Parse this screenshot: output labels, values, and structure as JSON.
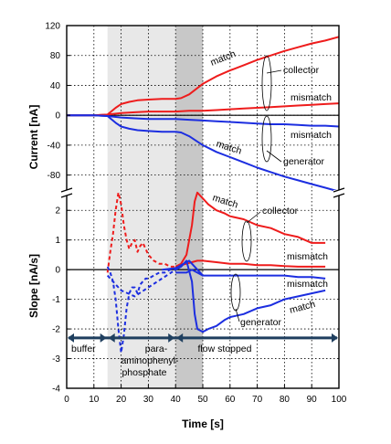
{
  "chart_data": {
    "type": "line",
    "xlabel": "Time [s]",
    "xlim": [
      0,
      100
    ],
    "x_ticks": [
      "0",
      "10",
      "20",
      "30",
      "40",
      "50",
      "60",
      "70",
      "80",
      "90",
      "100"
    ],
    "shaded_regions": [
      {
        "from": 15,
        "to": 40,
        "color": "#e8e8e8"
      },
      {
        "from": 40,
        "to": 50,
        "color": "#c8c8c8"
      }
    ],
    "panels": [
      {
        "ylabel": "Current [nA]",
        "ylim": [
          -100,
          120
        ],
        "y_ticks": [
          "120",
          "80",
          "40",
          "0",
          "-40",
          "-80"
        ],
        "series": [
          {
            "color": "#ee1c1c",
            "x": [
              0,
              10,
              15,
              18,
              20,
              23,
              26,
              30,
              35,
              40,
              42,
              45,
              50,
              55,
              60,
              65,
              70,
              75,
              80,
              85,
              90,
              95,
              100
            ],
            "y": [
              0,
              0,
              1,
              10,
              15,
              18,
              20,
              21,
              22,
              22,
              23,
              28,
              42,
              52,
              60,
              67,
              74,
              80,
              86,
              91,
              96,
              100,
              105
            ]
          },
          {
            "color": "#ee1c1c",
            "x": [
              0,
              10,
              15,
              20,
              25,
              30,
              35,
              40,
              45,
              50,
              55,
              60,
              65,
              70,
              75,
              80,
              85,
              90,
              95,
              100
            ],
            "y": [
              0,
              0,
              1,
              3,
              4,
              5,
              5,
              5,
              6,
              6,
              7,
              8,
              9,
              10,
              11,
              12,
              13,
              14,
              15,
              16
            ]
          },
          {
            "color": "#1c2ee0",
            "x": [
              0,
              10,
              15,
              20,
              25,
              30,
              35,
              40,
              45,
              50,
              55,
              60,
              65,
              70,
              75,
              80,
              85,
              90,
              95,
              100
            ],
            "y": [
              0,
              0,
              -1,
              -3,
              -4,
              -5,
              -5,
              -5,
              -6,
              -7,
              -8,
              -9,
              -10,
              -11,
              -12,
              -12,
              -13,
              -14,
              -14,
              -15
            ]
          },
          {
            "color": "#1c2ee0",
            "x": [
              0,
              10,
              15,
              18,
              20,
              23,
              26,
              30,
              35,
              40,
              42,
              45,
              50,
              55,
              60,
              65,
              70,
              75,
              80,
              85,
              90,
              95,
              100
            ],
            "y": [
              0,
              0,
              -1,
              -10,
              -15,
              -18,
              -20,
              -21,
              -22,
              -22,
              -23,
              -28,
              -40,
              -49,
              -56,
              -63,
              -70,
              -76,
              -82,
              -87,
              -92,
              -97,
              -102
            ]
          }
        ]
      },
      {
        "ylabel": "Slope [nA/s]",
        "ylim": [
          -4,
          2.5
        ],
        "y_ticks": [
          "2",
          "1",
          "0",
          "-1",
          "-2",
          "-3",
          "-4"
        ],
        "series": [
          {
            "color": "#ee1c1c",
            "dashed": true,
            "x": [
              15,
              16,
              17,
              18,
              19,
              20,
              21,
              22,
              23,
              24,
              25,
              26,
              27,
              28,
              29,
              30,
              32,
              34,
              36,
              38,
              40
            ],
            "y": [
              -0.1,
              0.6,
              1.2,
              2.0,
              2.6,
              2.2,
              1.5,
              1.0,
              0.7,
              0.9,
              1.0,
              0.6,
              0.8,
              0.9,
              0.7,
              0.5,
              0.3,
              0.2,
              0.2,
              0.1,
              0.1
            ]
          },
          {
            "color": "#ee1c1c",
            "dashed": false,
            "x": [
              40,
              42,
              44,
              46,
              47,
              48,
              50,
              52,
              55,
              58,
              60,
              65,
              70,
              75,
              80,
              85,
              90,
              95
            ],
            "y": [
              0.1,
              0.2,
              0.5,
              1.5,
              2.3,
              2.6,
              2.4,
              2.2,
              2.0,
              1.9,
              1.8,
              1.7,
              1.5,
              1.4,
              1.2,
              1.1,
              0.9,
              0.9
            ]
          },
          {
            "color": "#ee1c1c",
            "dashed": false,
            "x": [
              40,
              44,
              46,
              48,
              50,
              55,
              60,
              65,
              70,
              75,
              80,
              85,
              90,
              95
            ],
            "y": [
              0.1,
              0.2,
              0.25,
              0.3,
              0.3,
              0.25,
              0.2,
              0.2,
              0.15,
              0.15,
              0.12,
              0.1,
              0.1,
              0.1
            ]
          },
          {
            "color": "#1c2ee0",
            "dashed": false,
            "x": [
              40,
              44,
              46,
              48,
              50,
              55,
              60,
              65,
              70,
              75,
              80,
              85,
              90,
              95
            ],
            "y": [
              -0.1,
              -0.1,
              0.0,
              -0.1,
              -0.2,
              -0.2,
              -0.2,
              -0.2,
              -0.2,
              -0.2,
              -0.2,
              -0.25,
              -0.25,
              -0.3
            ]
          },
          {
            "color": "#1c2ee0",
            "dashed": true,
            "x": [
              15,
              16,
              17,
              18,
              19,
              20,
              21,
              22,
              23,
              24,
              25,
              26,
              27,
              28,
              29,
              30,
              32,
              34,
              36,
              38,
              40
            ],
            "y": [
              0.1,
              -0.1,
              -0.4,
              -1.0,
              -2.0,
              -2.8,
              -2.2,
              -1.3,
              -0.8,
              -0.6,
              -0.6,
              -0.8,
              -0.5,
              -0.4,
              -0.3,
              -0.3,
              -0.2,
              -0.1,
              -0.1,
              0.0,
              0.0
            ]
          },
          {
            "color": "#1c2ee0",
            "dashed": false,
            "x": [
              40,
              42,
              44,
              46,
              47,
              48,
              50,
              52,
              55,
              58,
              60,
              65,
              70,
              75,
              80,
              85,
              90,
              95
            ],
            "y": [
              0.0,
              0.1,
              0.3,
              -0.4,
              -1.5,
              -2.0,
              -2.1,
              -2.0,
              -1.9,
              -1.7,
              -1.6,
              -1.5,
              -1.3,
              -1.2,
              -1.0,
              -0.9,
              -0.8,
              -0.7
            ]
          },
          {
            "color": "#1c2ee0",
            "dashed": true,
            "x": [
              15,
              20,
              25,
              30,
              35,
              40
            ],
            "y": [
              -0.2,
              -0.7,
              -0.9,
              -0.6,
              -0.3,
              0.0
            ]
          },
          {
            "color": "#1c2ee0",
            "dashed": false,
            "x": [
              35,
              40,
              45,
              50
            ],
            "y": [
              0.0,
              0.05,
              0.3,
              -0.2
            ]
          }
        ],
        "phases": [
          {
            "label_lines": [
              "buffer"
            ],
            "from": 0,
            "to": 15
          },
          {
            "label_lines": [
              "para-",
              "aminophenyl-",
              "phosphate"
            ],
            "from": 15,
            "to": 40
          },
          {
            "label_lines": [
              "flow stopped"
            ],
            "from": 40,
            "to": 100
          }
        ]
      }
    ],
    "annotations": {
      "top": {
        "match": "match",
        "collector": "collector",
        "mismatch": "mismatch",
        "mismatch2": "mismatch",
        "match2": "match",
        "generator": "generator"
      },
      "bottom": {
        "match": "match",
        "collector": "collector",
        "mismatch": "mismatch",
        "mismatch2": "mismatch",
        "match2": "match",
        "generator": "generator"
      }
    }
  }
}
